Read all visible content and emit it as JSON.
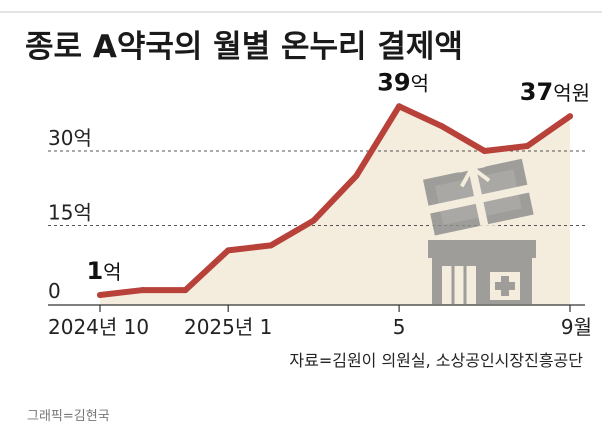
{
  "chart_data": {
    "type": "area",
    "title": "종로 A약국의 월별 온누리 결제액",
    "y_ticks": [
      "0",
      "15억",
      "30억"
    ],
    "x_tick_labels": [
      "2024년 10",
      "2025년 1",
      "5",
      "9월"
    ],
    "series": [
      {
        "x": [
          "2024-10",
          "2024-11",
          "2024-12",
          "2025-01",
          "2025-02",
          "2025-03",
          "2025-04",
          "2025-05",
          "2025-06",
          "2025-07",
          "2025-08",
          "2025-09"
        ],
        "values": [
          1,
          2,
          2,
          10,
          11,
          16,
          25,
          39,
          35,
          30,
          31,
          37
        ]
      }
    ],
    "ylim": [
      0,
      42
    ],
    "data_labels": [
      {
        "index": 0,
        "num": "1",
        "unit": "억"
      },
      {
        "index": 7,
        "num": "39",
        "unit": "억"
      },
      {
        "index": 11,
        "num": "37",
        "unit": "억원"
      }
    ],
    "line_color": "#b8413a",
    "fill_color": "#f4ecdc",
    "source": "자료=김원이 의원실, 소상공인시장진흥공단",
    "credit": "그래픽=김현국"
  }
}
